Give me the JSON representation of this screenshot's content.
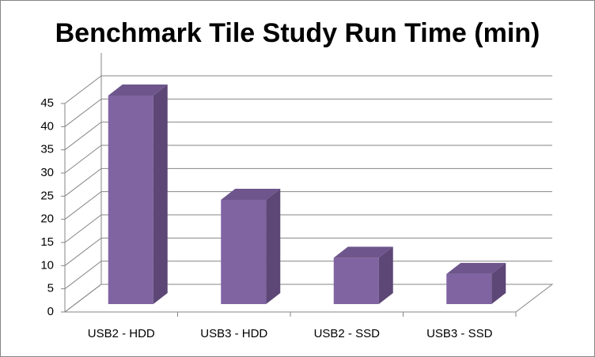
{
  "chart_data": {
    "type": "bar3d",
    "title": "Benchmark Tile Study Run Time (min)",
    "categories": [
      "USB2 - HDD",
      "USB3 - HDD",
      "USB2 - SSD",
      "USB3 - SSD"
    ],
    "values": [
      45,
      22.5,
      10,
      6.5
    ],
    "color": "#8064a2",
    "ylim": [
      0,
      45
    ],
    "yticks": [
      0,
      5,
      10,
      15,
      20,
      25,
      30,
      35,
      40,
      45
    ],
    "grid": true
  }
}
